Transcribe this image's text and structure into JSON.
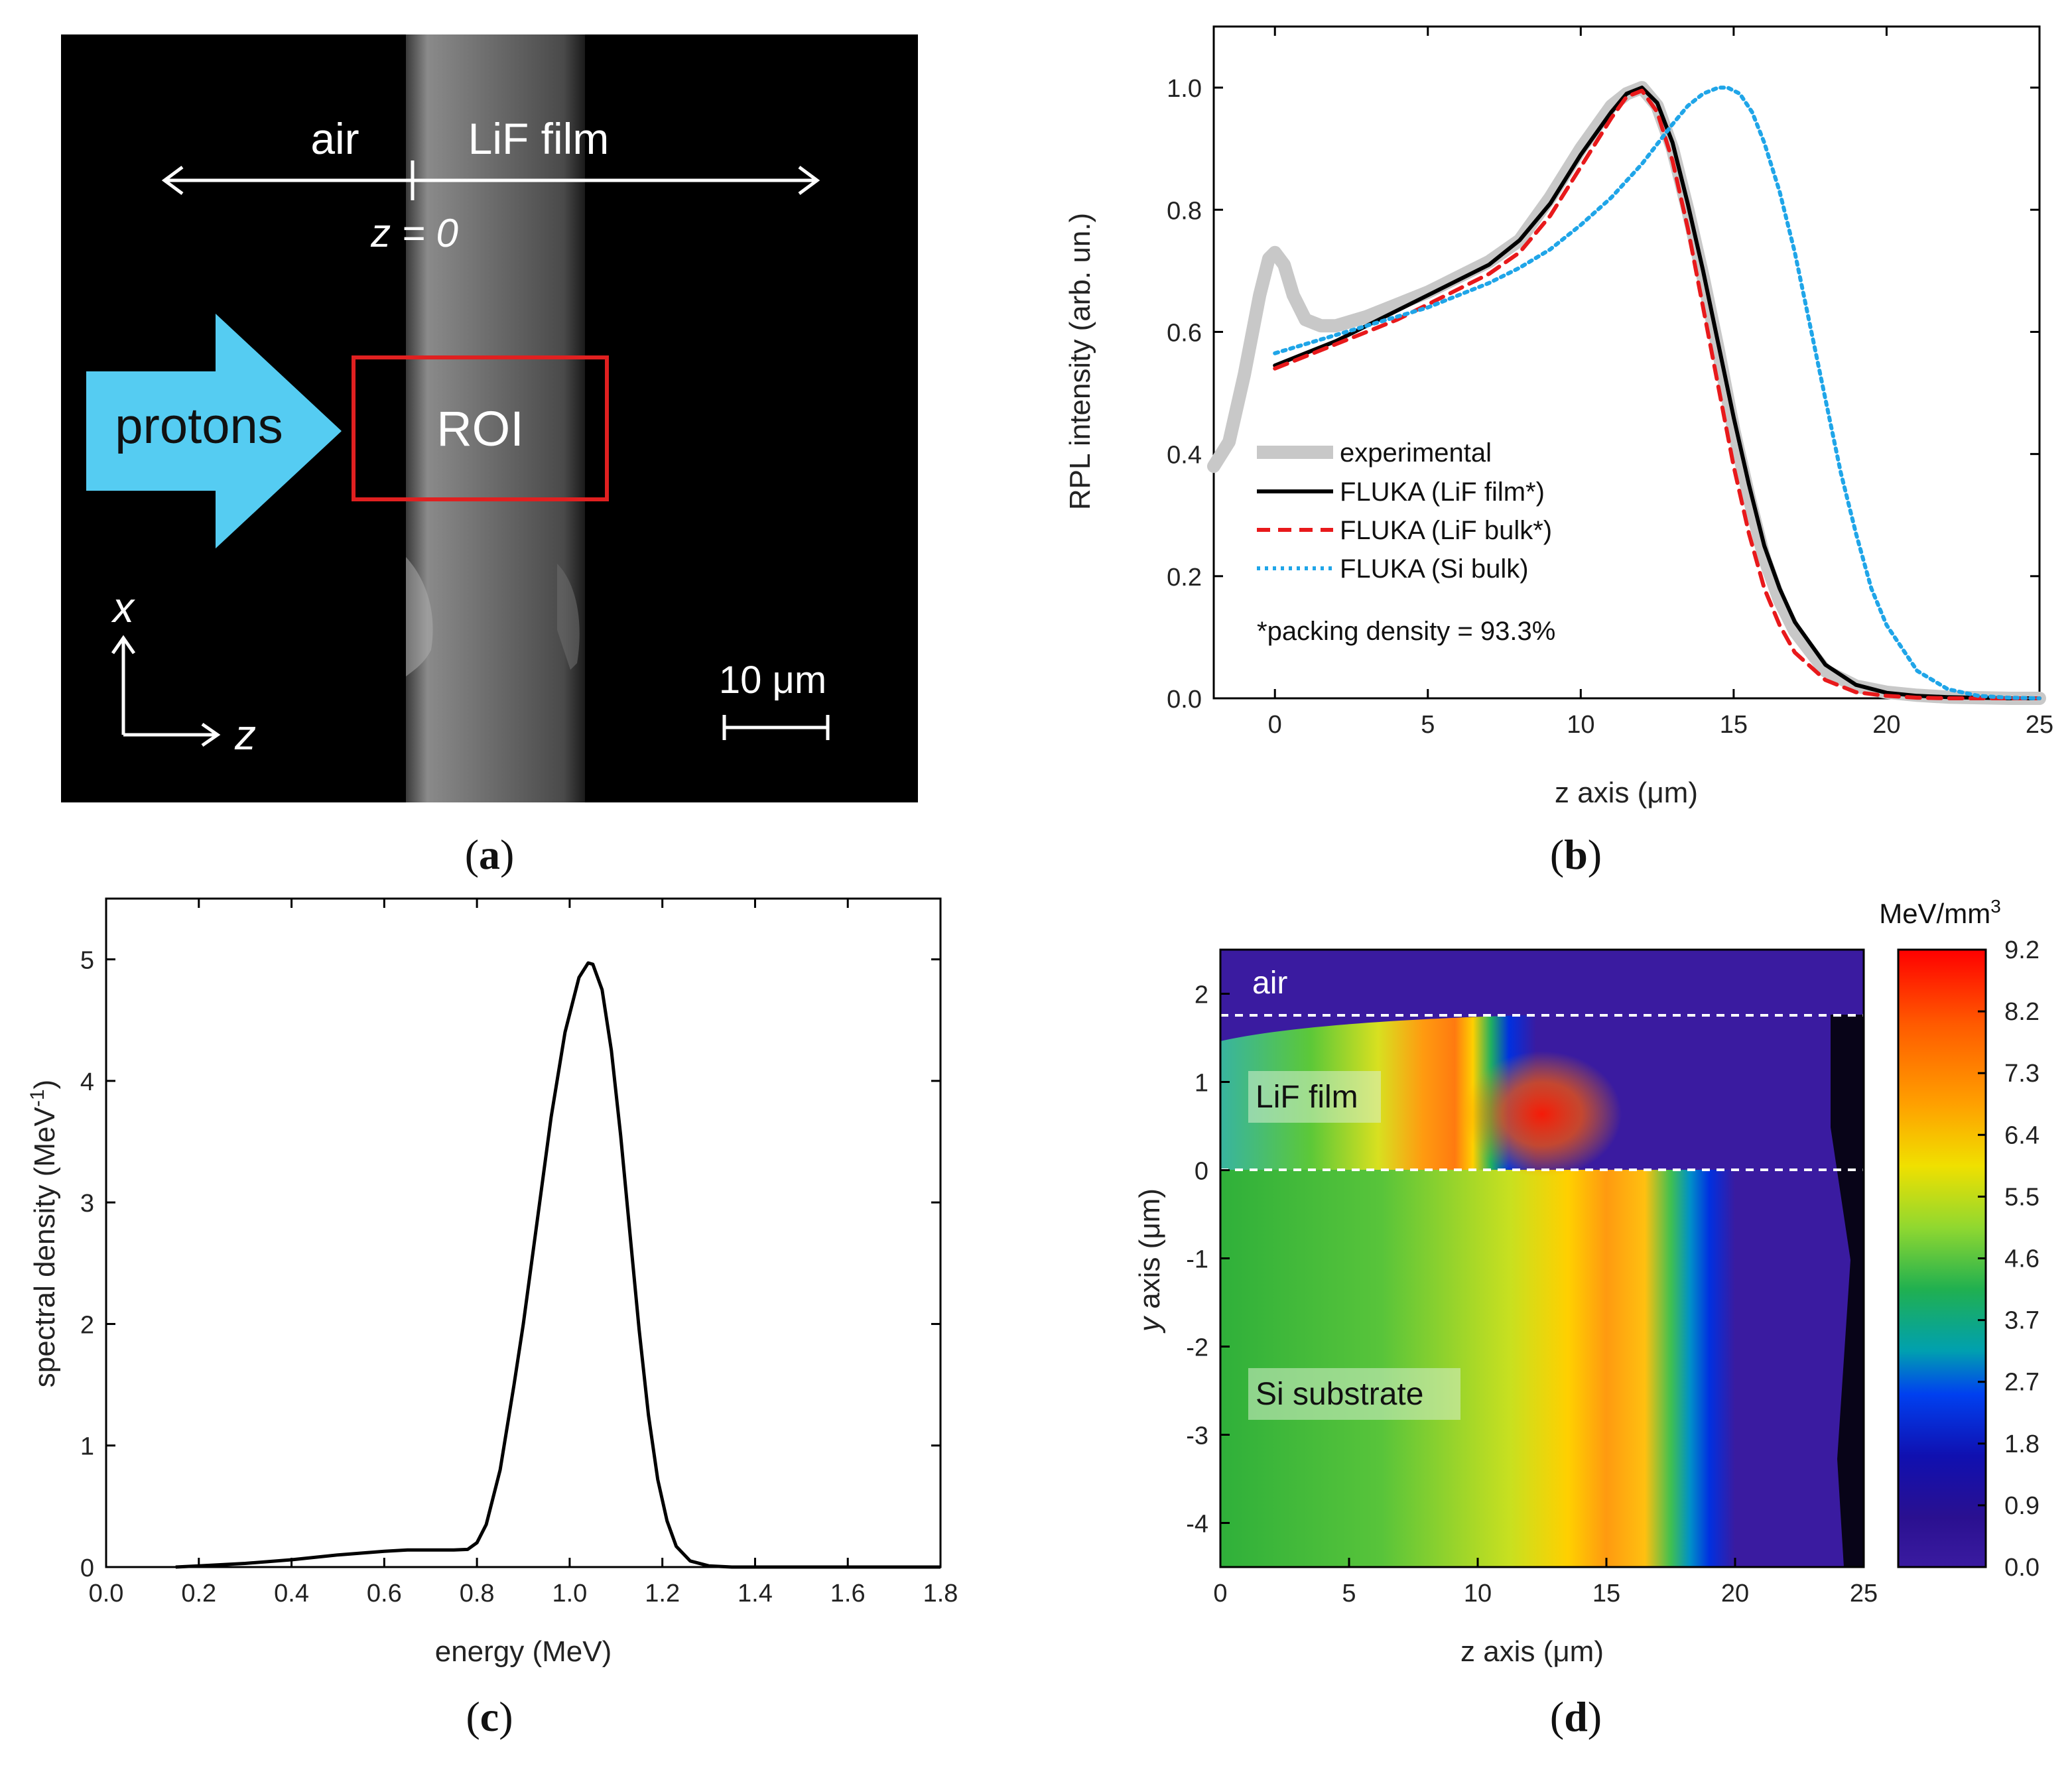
{
  "captions": {
    "a": "a",
    "b": "b",
    "c": "c",
    "d": "d"
  },
  "panel_a": {
    "label_air": "air",
    "label_film": "LiF film",
    "label_z0": "z = 0",
    "label_protons": "protons",
    "label_roi": "ROI",
    "axis_x": "x",
    "axis_z": "z",
    "scale_bar": "10 μm",
    "colors": {
      "arrow": "#55ccf2",
      "roi": "#e02020",
      "background": "#000000"
    }
  },
  "chart_data": [
    {
      "id": "b",
      "type": "line",
      "xlabel": "z axis (μm)",
      "ylabel": "RPL intensity (arb. un.)",
      "xlim": [
        -2,
        25
      ],
      "ylim": [
        0,
        1.1
      ],
      "xticks": [
        0,
        5,
        10,
        15,
        20,
        25
      ],
      "yticks": [
        0.0,
        0.2,
        0.4,
        0.6,
        0.8,
        1.0
      ],
      "annotation": "*packing density = 93.3%",
      "series": [
        {
          "name": "experimental",
          "color": "#c8c8c8",
          "style": "solid",
          "x": [
            -2,
            -1.5,
            -1,
            -0.5,
            -0.2,
            0,
            0.3,
            0.6,
            1,
            1.5,
            2,
            3,
            4,
            5,
            6,
            7,
            8,
            9,
            10,
            11,
            11.5,
            12,
            12.5,
            13,
            13.5,
            14,
            14.5,
            15,
            15.5,
            16,
            16.5,
            17,
            18,
            19,
            20,
            21,
            22,
            23,
            24,
            25
          ],
          "y": [
            0.38,
            0.42,
            0.53,
            0.66,
            0.72,
            0.73,
            0.71,
            0.66,
            0.62,
            0.61,
            0.61,
            0.625,
            0.645,
            0.665,
            0.69,
            0.715,
            0.75,
            0.82,
            0.9,
            0.97,
            0.99,
            1.0,
            0.97,
            0.9,
            0.8,
            0.69,
            0.57,
            0.44,
            0.33,
            0.23,
            0.16,
            0.11,
            0.045,
            0.02,
            0.01,
            0.005,
            0.002,
            0.001,
            0,
            0
          ]
        },
        {
          "name": "FLUKA (LiF film*)",
          "color": "#000000",
          "style": "solid",
          "x": [
            0,
            1,
            2,
            3,
            4,
            5,
            6,
            7,
            8,
            9,
            10,
            11,
            11.5,
            12,
            12.5,
            13,
            13.5,
            14,
            14.5,
            15,
            15.5,
            16,
            16.5,
            17,
            18,
            19,
            20,
            21,
            22,
            23,
            24,
            25
          ],
          "y": [
            0.545,
            0.565,
            0.585,
            0.61,
            0.635,
            0.66,
            0.685,
            0.71,
            0.75,
            0.81,
            0.89,
            0.96,
            0.99,
            1.0,
            0.975,
            0.91,
            0.81,
            0.7,
            0.58,
            0.46,
            0.35,
            0.25,
            0.18,
            0.125,
            0.055,
            0.022,
            0.009,
            0.004,
            0.002,
            0.001,
            0,
            0
          ]
        },
        {
          "name": "FLUKA (LiF bulk*)",
          "color": "#e8191b",
          "style": "dashed",
          "x": [
            0,
            1,
            2,
            3,
            4,
            5,
            6,
            7,
            8,
            9,
            10,
            11,
            11.5,
            12,
            12.5,
            13,
            13.5,
            14,
            14.5,
            15,
            15.5,
            16,
            16.5,
            17,
            18,
            19,
            20,
            21,
            22,
            25
          ],
          "y": [
            0.54,
            0.56,
            0.58,
            0.6,
            0.62,
            0.645,
            0.67,
            0.695,
            0.73,
            0.79,
            0.87,
            0.95,
            0.985,
            0.995,
            0.96,
            0.88,
            0.77,
            0.64,
            0.51,
            0.38,
            0.27,
            0.18,
            0.12,
            0.075,
            0.03,
            0.01,
            0.004,
            0.001,
            0,
            0
          ]
        },
        {
          "name": "FLUKA (Si bulk)",
          "color": "#1fa5e8",
          "style": "dotted",
          "x": [
            0,
            1,
            2,
            3,
            4,
            5,
            6,
            7,
            8,
            9,
            10,
            11,
            12,
            13,
            13.5,
            14,
            14.5,
            14.8,
            15.2,
            15.6,
            16,
            16.5,
            17,
            17.5,
            18,
            18.5,
            19,
            19.5,
            20,
            21,
            22,
            23,
            24,
            25
          ],
          "y": [
            0.565,
            0.58,
            0.595,
            0.61,
            0.625,
            0.64,
            0.66,
            0.68,
            0.705,
            0.735,
            0.775,
            0.82,
            0.875,
            0.94,
            0.97,
            0.99,
            1.0,
            1.0,
            0.99,
            0.96,
            0.91,
            0.83,
            0.73,
            0.61,
            0.49,
            0.37,
            0.27,
            0.18,
            0.12,
            0.045,
            0.015,
            0.004,
            0.001,
            0
          ]
        }
      ]
    },
    {
      "id": "c",
      "type": "line",
      "xlabel": "energy (MeV)",
      "ylabel": "spectral density (MeV-1)",
      "ylabel_main": "spectral density (MeV",
      "ylabel_sup": "-1",
      "ylabel_end": ")",
      "xlim": [
        0,
        1.8
      ],
      "ylim": [
        0,
        5.5
      ],
      "xticks": [
        0.0,
        0.2,
        0.4,
        0.6,
        0.8,
        1.0,
        1.2,
        1.4,
        1.6,
        1.8
      ],
      "yticks": [
        0,
        1,
        2,
        3,
        4,
        5
      ],
      "series": [
        {
          "name": "spectrum",
          "color": "#000000",
          "x": [
            0.15,
            0.2,
            0.3,
            0.4,
            0.5,
            0.6,
            0.65,
            0.7,
            0.75,
            0.78,
            0.8,
            0.82,
            0.85,
            0.88,
            0.9,
            0.93,
            0.96,
            0.99,
            1.02,
            1.04,
            1.05,
            1.07,
            1.09,
            1.11,
            1.13,
            1.15,
            1.17,
            1.19,
            1.21,
            1.23,
            1.26,
            1.3,
            1.35,
            1.8
          ],
          "y": [
            0.0,
            0.01,
            0.03,
            0.06,
            0.1,
            0.13,
            0.14,
            0.14,
            0.14,
            0.145,
            0.2,
            0.35,
            0.8,
            1.5,
            2.0,
            2.85,
            3.7,
            4.4,
            4.85,
            4.97,
            4.96,
            4.75,
            4.25,
            3.55,
            2.75,
            1.95,
            1.25,
            0.72,
            0.38,
            0.17,
            0.05,
            0.01,
            0.0,
            0.0
          ]
        }
      ]
    },
    {
      "id": "d",
      "type": "heatmap",
      "xlabel": "z axis (μm)",
      "ylabel": "y axis (μm)",
      "ylabel_var": "y",
      "ylabel_rest": " axis (μm)",
      "xlim": [
        0,
        25
      ],
      "ylim": [
        -4.5,
        2.5
      ],
      "xticks": [
        0,
        5,
        10,
        15,
        20,
        25
      ],
      "yticks": [
        2,
        1,
        0,
        -1,
        -2,
        -3,
        -4
      ],
      "regions": [
        {
          "label": "air",
          "y_from": 1.72,
          "y_to": 2.5
        },
        {
          "label": "LiF film",
          "y_from": 0,
          "y_to": 1.72
        },
        {
          "label": "Si substrate",
          "y_from": -4.5,
          "y_to": 0
        }
      ],
      "boundaries_y": [
        1.72,
        0
      ],
      "colorbar": {
        "unit": "MeV/mm",
        "unit_sup": "3",
        "ticks": [
          "9.2",
          "8.2",
          "7.3",
          "6.4",
          "5.5",
          "4.6",
          "3.7",
          "2.7",
          "1.8",
          "0.9",
          "0.0"
        ],
        "stops": [
          "#ff0000",
          "#ff6000",
          "#ffc000",
          "#d8f000",
          "#60d040",
          "#10b040",
          "#0090c0",
          "#0030f0",
          "#1010a0",
          "#401080",
          "#3a1ba0"
        ]
      },
      "colors": {
        "air": "#3a1ba0",
        "peak": "#ff1a00"
      }
    }
  ]
}
